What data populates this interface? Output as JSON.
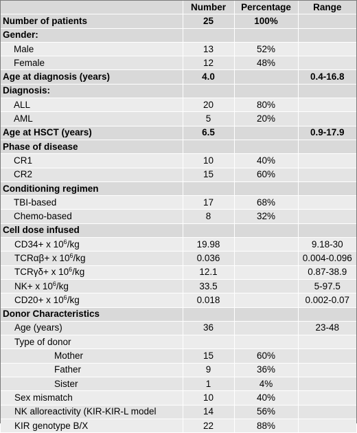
{
  "headers": {
    "label": "",
    "number": "Number",
    "percentage": "Percentage",
    "range": "Range"
  },
  "rows": [
    {
      "type": "section",
      "label": "Number of patients",
      "number": "25",
      "percentage": "100%",
      "range": ""
    },
    {
      "type": "section",
      "label": "Gender:",
      "number": "",
      "percentage": "",
      "range": ""
    },
    {
      "type": "l1",
      "label": "Male",
      "number": "13",
      "percentage": "52%",
      "range": ""
    },
    {
      "type": "l1",
      "label": "Female",
      "number": "12",
      "percentage": "48%",
      "range": ""
    },
    {
      "type": "section",
      "label": "Age at diagnosis (years)",
      "number": "4.0",
      "percentage": "",
      "range": "0.4-16.8"
    },
    {
      "type": "section",
      "label": "Diagnosis:",
      "number": "",
      "percentage": "",
      "range": ""
    },
    {
      "type": "l1",
      "label": "ALL",
      "number": "20",
      "percentage": "80%",
      "range": ""
    },
    {
      "type": "l1",
      "label": "AML",
      "number": "5",
      "percentage": "20%",
      "range": ""
    },
    {
      "type": "section",
      "label": "Age at HSCT (years)",
      "number": "6.5",
      "percentage": "",
      "range": "0.9-17.9"
    },
    {
      "type": "section",
      "label": "Phase of disease",
      "number": "",
      "percentage": "",
      "range": ""
    },
    {
      "type": "l1",
      "label": "CR1",
      "number": "10",
      "percentage": "40%",
      "range": ""
    },
    {
      "type": "l1",
      "label": "CR2",
      "number": "15",
      "percentage": "60%",
      "range": ""
    },
    {
      "type": "section",
      "label": "Conditioning regimen",
      "number": "",
      "percentage": "",
      "range": ""
    },
    {
      "type": "l1",
      "label": "TBI-based",
      "number": "17",
      "percentage": "68%",
      "range": ""
    },
    {
      "type": "l1",
      "label": "Chemo-based",
      "number": "8",
      "percentage": "32%",
      "range": ""
    },
    {
      "type": "section",
      "label": "Cell dose infused",
      "number": "",
      "percentage": "",
      "range": ""
    },
    {
      "type": "l2",
      "label": "CD34+ x 10",
      "sup": "6",
      "suffix": "/kg",
      "number": "19.98",
      "percentage": "",
      "range": "9.18-30"
    },
    {
      "type": "l2",
      "label": "TCRαβ+ x 10",
      "sup": "6",
      "suffix": "/kg",
      "number": "0.036",
      "percentage": "",
      "range": "0.004-0.096"
    },
    {
      "type": "l2",
      "label": "TCRγδ+ x 10",
      "sup": "6",
      "suffix": "/kg",
      "number": "12.1",
      "percentage": "",
      "range": "0.87-38.9"
    },
    {
      "type": "l2",
      "label": "NK+ x 10",
      "sup": "6",
      "suffix": "/kg",
      "number": "33.5",
      "percentage": "",
      "range": "5-97.5"
    },
    {
      "type": "l2",
      "label": "CD20+ x 10",
      "sup": "6",
      "suffix": "/kg",
      "number": "0.018",
      "percentage": "",
      "range": "0.002-0.07"
    },
    {
      "type": "section",
      "label": "Donor Characteristics",
      "number": "",
      "percentage": "",
      "range": ""
    },
    {
      "type": "l2",
      "label": "Age (years)",
      "number": "36",
      "percentage": "",
      "range": "23-48"
    },
    {
      "type": "l2",
      "label": "Type of donor",
      "number": "",
      "percentage": "",
      "range": ""
    },
    {
      "type": "l3",
      "label": "Mother",
      "number": "15",
      "percentage": "60%",
      "range": ""
    },
    {
      "type": "l3",
      "label": "Father",
      "number": "9",
      "percentage": "36%",
      "range": ""
    },
    {
      "type": "l3",
      "label": "Sister",
      "number": "1",
      "percentage": "4%",
      "range": ""
    },
    {
      "type": "l2",
      "label": "Sex mismatch",
      "number": "10",
      "percentage": "40%",
      "range": ""
    },
    {
      "type": "l2",
      "label": "NK alloreactivity (KIR-KIR-L model",
      "number": "14",
      "percentage": "56%",
      "range": ""
    },
    {
      "type": "l2",
      "label": "KIR genotype B/X",
      "number": "22",
      "percentage": "88%",
      "range": ""
    }
  ]
}
